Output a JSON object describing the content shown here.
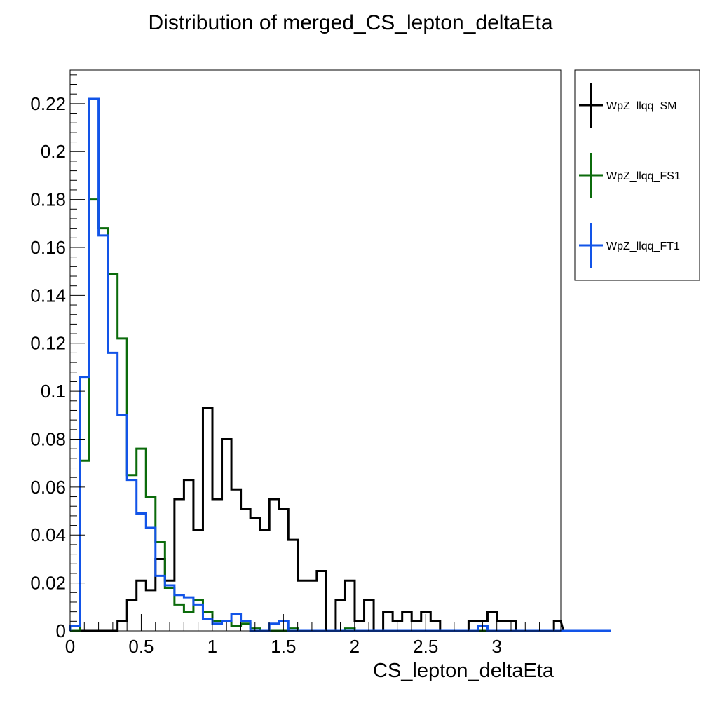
{
  "chart_data": {
    "type": "histogram-step",
    "title": "Distribution of merged_CS_lepton_deltaEta",
    "xlabel": "CS_lepton_deltaEta",
    "ylabel": "",
    "xlim": [
      0,
      3.45
    ],
    "ylim": [
      0,
      0.234
    ],
    "bin_width": 0.0667,
    "x_ticks": [
      0,
      0.5,
      1,
      1.5,
      2,
      2.5,
      3
    ],
    "x_tick_labels": [
      "0",
      "0.5",
      "1",
      "1.5",
      "2",
      "2.5",
      "3"
    ],
    "y_ticks": [
      0,
      0.02,
      0.04,
      0.06,
      0.08,
      0.1,
      0.12,
      0.14,
      0.16,
      0.18,
      0.2,
      0.22
    ],
    "y_tick_labels": [
      "0",
      "0.02",
      "0.04",
      "0.06",
      "0.08",
      "0.1",
      "0.12",
      "0.14",
      "0.16",
      "0.18",
      "0.2",
      "0.22"
    ],
    "grid": false,
    "legend_position": "right-outside-top",
    "series": [
      {
        "name": "WpZ_llqq_SM",
        "color": "#000000",
        "values": [
          0,
          0,
          0,
          0,
          0,
          0.004,
          0.013,
          0.021,
          0.017,
          0.03,
          0.021,
          0.055,
          0.063,
          0.042,
          0.093,
          0.055,
          0.08,
          0.059,
          0.051,
          0.047,
          0.042,
          0.055,
          0.051,
          0.038,
          0.021,
          0.021,
          0.025,
          0,
          0.013,
          0.021,
          0.004,
          0.013,
          0,
          0.008,
          0.004,
          0.008,
          0.004,
          0.008,
          0.004,
          0,
          0,
          0,
          0.004,
          0.004,
          0.008,
          0.004,
          0.004,
          0,
          0,
          0,
          0,
          0.004,
          0,
          0,
          0,
          0,
          0,
          0
        ]
      },
      {
        "name": "WpZ_llqq_FS1",
        "color": "#0b6b0b",
        "values": [
          0,
          0.071,
          0.18,
          0.168,
          0.149,
          0.122,
          0.065,
          0.076,
          0.056,
          0.037,
          0.018,
          0.011,
          0.008,
          0.013,
          0.008,
          0.004,
          0.004,
          0.002,
          0.003,
          0.001,
          0,
          0,
          0,
          0.001,
          0,
          0,
          0,
          0,
          0,
          0.001,
          0,
          0,
          0,
          0,
          0,
          0,
          0,
          0,
          0,
          0,
          0,
          0,
          0,
          0,
          0,
          0,
          0,
          0,
          0,
          0,
          0,
          0,
          0,
          0,
          0,
          0,
          0,
          0
        ]
      },
      {
        "name": "WpZ_llqq_FT1",
        "color": "#1254e8",
        "values": [
          0.002,
          0.106,
          0.222,
          0.165,
          0.116,
          0.09,
          0.063,
          0.049,
          0.043,
          0.023,
          0.019,
          0.015,
          0.014,
          0.011,
          0.005,
          0.003,
          0.004,
          0.007,
          0.004,
          0,
          0,
          0.003,
          0.004,
          0,
          0,
          0,
          0,
          0,
          0,
          0,
          0,
          0,
          0,
          0,
          0,
          0,
          0,
          0,
          0,
          0,
          0,
          0,
          0,
          0.002,
          0,
          0,
          0,
          0,
          0,
          0,
          0,
          0,
          0,
          0,
          0,
          0,
          0,
          0
        ]
      }
    ]
  }
}
